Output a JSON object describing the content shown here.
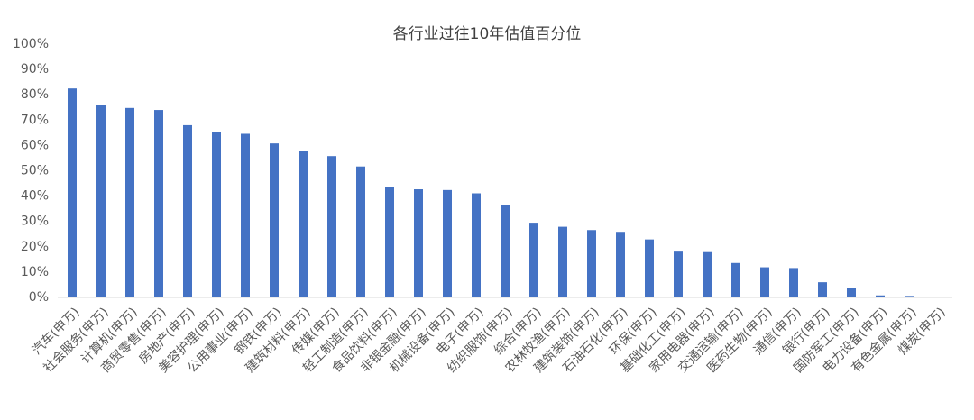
{
  "chart_data": {
    "type": "bar",
    "title": "各行业过往10年估值百分位",
    "categories": [
      "汽车(申万)",
      "社会服务(申万)",
      "计算机(申万)",
      "商贸零售(申万)",
      "房地产(申万)",
      "美容护理(申万)",
      "公用事业(申万)",
      "钢铁(申万)",
      "建筑材料(申万)",
      "传媒(申万)",
      "轻工制造(申万)",
      "食品饮料(申万)",
      "非银金融(申万)",
      "机械设备(申万)",
      "电子(申万)",
      "纺织服饰(申万)",
      "综合(申万)",
      "农林牧渔(申万)",
      "建筑装饰(申万)",
      "石油石化(申万)",
      "环保(申万)",
      "基础化工(申万)",
      "家用电器(申万)",
      "交通运输(申万)",
      "医药生物(申万)",
      "通信(申万)",
      "银行(申万)",
      "国防军工(申万)",
      "电力设备(申万)",
      "有色金属(申万)",
      "煤炭(申万)"
    ],
    "values": [
      82.5,
      75.8,
      74.8,
      74.0,
      68.0,
      65.4,
      64.6,
      60.8,
      57.9,
      55.8,
      51.7,
      43.7,
      42.7,
      42.4,
      41.1,
      36.3,
      29.5,
      27.9,
      26.6,
      25.9,
      22.9,
      18.1,
      17.9,
      13.6,
      11.9,
      11.6,
      6.0,
      3.7,
      0.8,
      0.6,
      0
    ],
    "color": "#4472c4",
    "ylim": [
      0,
      100
    ],
    "yticks": [
      {
        "value": 0,
        "label": "0%"
      },
      {
        "value": 10,
        "label": "10%"
      },
      {
        "value": 20,
        "label": "20%"
      },
      {
        "value": 30,
        "label": "30%"
      },
      {
        "value": 40,
        "label": "40%"
      },
      {
        "value": 50,
        "label": "50%"
      },
      {
        "value": 60,
        "label": "60%"
      },
      {
        "value": 70,
        "label": "70%"
      },
      {
        "value": 80,
        "label": "80%"
      },
      {
        "value": 90,
        "label": "90%"
      },
      {
        "value": 100,
        "label": "100%"
      }
    ],
    "grid": false
  }
}
